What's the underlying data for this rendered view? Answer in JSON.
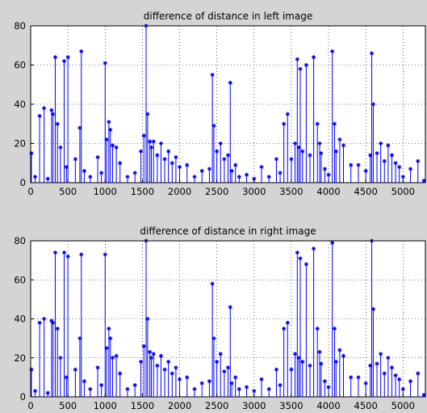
{
  "chart_data": [
    {
      "type": "stem",
      "title": "difference of distance in left image",
      "xlabel": "",
      "ylabel": "",
      "xlim": [
        0,
        5300
      ],
      "ylim": [
        0,
        80
      ],
      "xticks": [
        0,
        500,
        1000,
        1500,
        2000,
        2500,
        3000,
        3500,
        4000,
        4500,
        5000
      ],
      "yticks": [
        0,
        20,
        40,
        60,
        80
      ],
      "grid": true,
      "color": "#0000ff",
      "series": [
        {
          "x": [
            10,
            60,
            120,
            180,
            230,
            280,
            300,
            330,
            360,
            400,
            450,
            480,
            500,
            600,
            660,
            680,
            720,
            800,
            900,
            950,
            1000,
            1020,
            1050,
            1070,
            1100,
            1150,
            1200,
            1300,
            1400,
            1480,
            1520,
            1550,
            1570,
            1600,
            1620,
            1650,
            1700,
            1750,
            1800,
            1850,
            1900,
            1950,
            2000,
            2100,
            2200,
            2300,
            2400,
            2440,
            2460,
            2500,
            2550,
            2600,
            2650,
            2680,
            2700,
            2750,
            2800,
            2900,
            3000,
            3100,
            3200,
            3300,
            3350,
            3400,
            3450,
            3500,
            3550,
            3580,
            3600,
            3620,
            3650,
            3700,
            3750,
            3800,
            3850,
            3880,
            3900,
            3950,
            4000,
            4050,
            4080,
            4100,
            4150,
            4200,
            4300,
            4400,
            4500,
            4560,
            4580,
            4600,
            4650,
            4700,
            4750,
            4800,
            4850,
            4900,
            4950,
            5000,
            5100,
            5200,
            5280
          ],
          "y": [
            15,
            3,
            34,
            38,
            2,
            37,
            35,
            64,
            30,
            18,
            62,
            8,
            64,
            12,
            28,
            67,
            6,
            3,
            13,
            5,
            61,
            22,
            31,
            27,
            19,
            18,
            10,
            3,
            5,
            16,
            24,
            80,
            35,
            21,
            18,
            21,
            14,
            20,
            12,
            16,
            10,
            13,
            8,
            9,
            3,
            6,
            7,
            55,
            29,
            16,
            20,
            12,
            14,
            51,
            6,
            9,
            3,
            4,
            2,
            8,
            3,
            12,
            5,
            30,
            35,
            12,
            20,
            63,
            18,
            58,
            16,
            60,
            14,
            64,
            30,
            20,
            15,
            7,
            4,
            67,
            30,
            16,
            22,
            19,
            9,
            9,
            6,
            14,
            66,
            40,
            15,
            20,
            11,
            19,
            14,
            10,
            8,
            3,
            7,
            11,
            1
          ]
        }
      ]
    },
    {
      "type": "stem",
      "title": "difference of distance in right image",
      "xlabel": "",
      "ylabel": "",
      "xlim": [
        0,
        5300
      ],
      "ylim": [
        0,
        80
      ],
      "xticks": [
        0,
        500,
        1000,
        1500,
        2000,
        2500,
        3000,
        3500,
        4000,
        4500,
        5000
      ],
      "yticks": [
        0,
        20,
        40,
        60,
        80
      ],
      "grid": true,
      "color": "#0000ff",
      "series": [
        {
          "x": [
            10,
            60,
            120,
            180,
            230,
            280,
            300,
            330,
            360,
            400,
            450,
            480,
            500,
            600,
            660,
            680,
            720,
            800,
            900,
            950,
            1000,
            1020,
            1050,
            1070,
            1100,
            1150,
            1200,
            1300,
            1400,
            1480,
            1520,
            1550,
            1570,
            1600,
            1620,
            1650,
            1700,
            1750,
            1800,
            1850,
            1900,
            1950,
            2000,
            2100,
            2200,
            2300,
            2400,
            2440,
            2460,
            2500,
            2550,
            2600,
            2650,
            2680,
            2700,
            2750,
            2800,
            2900,
            3000,
            3100,
            3200,
            3300,
            3350,
            3400,
            3450,
            3500,
            3550,
            3580,
            3600,
            3620,
            3650,
            3700,
            3750,
            3800,
            3850,
            3880,
            3900,
            3950,
            4000,
            4050,
            4080,
            4100,
            4150,
            4200,
            4300,
            4400,
            4500,
            4560,
            4580,
            4600,
            4650,
            4700,
            4750,
            4800,
            4850,
            4900,
            4950,
            5000,
            5100,
            5200,
            5280
          ],
          "y": [
            14,
            3,
            38,
            40,
            2,
            39,
            38,
            74,
            35,
            20,
            74,
            10,
            72,
            14,
            30,
            73,
            8,
            4,
            15,
            6,
            73,
            25,
            35,
            30,
            20,
            21,
            12,
            4,
            6,
            18,
            26,
            80,
            40,
            23,
            20,
            22,
            16,
            21,
            14,
            18,
            12,
            15,
            9,
            10,
            4,
            7,
            8,
            58,
            30,
            18,
            22,
            13,
            15,
            46,
            7,
            10,
            4,
            5,
            3,
            9,
            4,
            14,
            6,
            35,
            38,
            14,
            22,
            74,
            20,
            71,
            18,
            68,
            16,
            76,
            35,
            23,
            17,
            8,
            5,
            79,
            35,
            18,
            24,
            21,
            10,
            10,
            7,
            16,
            80,
            45,
            17,
            22,
            12,
            20,
            15,
            11,
            9,
            4,
            8,
            12,
            1
          ]
        }
      ]
    }
  ]
}
